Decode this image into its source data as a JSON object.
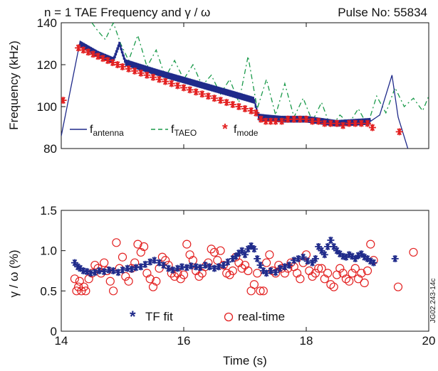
{
  "chart_data": [
    {
      "type": "line",
      "title": "n = 1 TAE Frequency and γ / ω",
      "pulse_label": "Pulse No: 55834",
      "xlabel": "",
      "ylabel": "Frequency (kHz)",
      "xlim": [
        14,
        20
      ],
      "ylim": [
        80,
        140
      ],
      "y_ticks": [
        80,
        100,
        120,
        140
      ],
      "grid": false,
      "legend_position": "bottom-left",
      "series": [
        {
          "name": "f_antenna",
          "legend_main": "f",
          "legend_sub": "antenna",
          "color": "#1f2a8a",
          "style": "solid",
          "x": [
            14.0,
            14.3,
            14.6,
            14.85,
            14.95,
            15.05,
            15.6,
            16.2,
            16.8,
            17.15,
            17.22,
            17.6,
            18.0,
            18.5,
            19.05,
            19.2,
            19.4,
            19.5,
            19.68
          ],
          "y": [
            86,
            130,
            125,
            122,
            130,
            121,
            116,
            111,
            106,
            103,
            95,
            94,
            94,
            92,
            93,
            96,
            115,
            95,
            78
          ]
        },
        {
          "name": "f_TAEO",
          "legend_main": "f",
          "legend_sub": "TAEO",
          "color": "#1a9a4a",
          "style": "dashed",
          "x": [
            14.5,
            14.6,
            14.72,
            14.85,
            14.97,
            15.1,
            15.25,
            15.4,
            15.55,
            15.7,
            15.85,
            16.0,
            16.15,
            16.3,
            16.45,
            16.6,
            16.75,
            16.9,
            17.05,
            17.2,
            17.35,
            17.5,
            17.65,
            17.8,
            17.95,
            18.1,
            18.25,
            18.4,
            18.55,
            18.7,
            18.85,
            19.0,
            19.15,
            19.3,
            19.45,
            19.6,
            19.75,
            19.9,
            20.0
          ],
          "y": [
            140,
            136,
            132,
            140,
            130,
            122,
            134,
            119,
            127,
            114,
            122,
            113,
            120,
            110,
            115,
            106,
            113,
            102,
            124,
            99,
            113,
            96,
            111,
            95,
            104,
            93,
            102,
            90,
            96,
            92,
            99,
            91,
            105,
            97,
            109,
            100,
            104,
            98,
            105
          ]
        },
        {
          "name": "f_mode",
          "legend_main": "f",
          "legend_sub": "mode",
          "color": "#e32020",
          "style": "markers",
          "x": [
            14.03,
            14.28,
            14.36,
            14.44,
            14.52,
            14.6,
            14.68,
            14.76,
            14.84,
            14.92,
            15.0,
            15.1,
            15.2,
            15.3,
            15.4,
            15.5,
            15.6,
            15.7,
            15.8,
            15.9,
            16.0,
            16.1,
            16.2,
            16.3,
            16.4,
            16.5,
            16.6,
            16.7,
            16.8,
            16.9,
            17.0,
            17.1,
            17.18,
            17.26,
            17.34,
            17.42,
            17.5,
            17.6,
            17.7,
            17.8,
            17.9,
            18.0,
            18.1,
            18.2,
            18.3,
            18.4,
            18.5,
            18.6,
            18.7,
            18.8,
            18.9,
            19.0,
            19.08,
            19.52
          ],
          "y": [
            103,
            128,
            127,
            126,
            125,
            124,
            123,
            122,
            121,
            120,
            119,
            118,
            117,
            116,
            115,
            114,
            113,
            112,
            111,
            110,
            109,
            108,
            107,
            106,
            105,
            104,
            103,
            102,
            101,
            100,
            99,
            98,
            97,
            94,
            93,
            93,
            93,
            93,
            94,
            94,
            94,
            94,
            93,
            93,
            92,
            92,
            92,
            91,
            92,
            92,
            92,
            92,
            90,
            88
          ]
        }
      ]
    },
    {
      "type": "scatter",
      "title": "",
      "xlabel": "Time (s)",
      "ylabel": "γ / ω (%)",
      "xlim": [
        14,
        20
      ],
      "ylim": [
        0,
        1.5
      ],
      "x_ticks": [
        14,
        16,
        18,
        20
      ],
      "y_ticks": [
        0,
        0.5,
        1.0,
        1.5
      ],
      "y_tick_labels": [
        "0",
        "0.5",
        "1.0",
        "1.5"
      ],
      "grid": false,
      "legend_position": "bottom-center",
      "series": [
        {
          "name": "TF fit",
          "color": "#1f2a8a",
          "marker": "asterisk",
          "x": [
            14.22,
            14.27,
            14.31,
            14.36,
            14.42,
            14.48,
            14.55,
            14.62,
            14.7,
            14.78,
            14.85,
            14.93,
            15.0,
            15.08,
            15.15,
            15.22,
            15.3,
            15.37,
            15.45,
            15.52,
            15.6,
            15.67,
            15.75,
            15.82,
            15.9,
            15.97,
            16.05,
            16.12,
            16.2,
            16.27,
            16.35,
            16.42,
            16.5,
            16.57,
            16.65,
            16.72,
            16.8,
            16.85,
            16.9,
            16.95,
            17.0,
            17.05,
            17.1,
            17.15,
            17.2,
            17.25,
            17.3,
            17.35,
            17.42,
            17.5,
            17.57,
            17.65,
            17.72,
            17.8,
            17.87,
            17.95,
            18.02,
            18.1,
            18.15,
            18.2,
            18.25,
            18.3,
            18.35,
            18.4,
            18.45,
            18.5,
            18.55,
            18.6,
            18.65,
            18.7,
            18.75,
            18.8,
            18.85,
            18.9,
            18.95,
            19.0,
            19.05,
            19.1,
            19.45
          ],
          "y": [
            0.85,
            0.8,
            0.78,
            0.75,
            0.74,
            0.72,
            0.73,
            0.75,
            0.74,
            0.76,
            0.75,
            0.73,
            0.76,
            0.78,
            0.77,
            0.79,
            0.8,
            0.83,
            0.86,
            0.88,
            0.85,
            0.82,
            0.78,
            0.76,
            0.78,
            0.8,
            0.79,
            0.81,
            0.8,
            0.79,
            0.82,
            0.8,
            0.78,
            0.8,
            0.82,
            0.86,
            0.9,
            0.93,
            0.97,
            1.0,
            0.95,
            1.02,
            1.06,
            1.02,
            0.9,
            0.82,
            0.75,
            0.72,
            0.75,
            0.73,
            0.78,
            0.8,
            0.82,
            0.88,
            0.9,
            0.92,
            0.87,
            0.85,
            0.9,
            1.05,
            1.0,
            0.95,
            1.05,
            1.13,
            1.05,
            1.0,
            0.96,
            0.93,
            0.92,
            0.95,
            0.93,
            0.9,
            0.94,
            0.96,
            0.92,
            0.9,
            0.87,
            0.85,
            0.9
          ]
        },
        {
          "name": "real-time",
          "color": "#e32020",
          "marker": "circle",
          "x": [
            14.22,
            14.25,
            14.28,
            14.3,
            14.33,
            14.37,
            14.4,
            14.45,
            14.5,
            14.55,
            14.6,
            14.65,
            14.7,
            14.75,
            14.8,
            14.85,
            14.9,
            14.95,
            15.0,
            15.05,
            15.1,
            15.15,
            15.2,
            15.25,
            15.3,
            15.35,
            15.4,
            15.45,
            15.5,
            15.55,
            15.6,
            15.65,
            15.7,
            15.75,
            15.8,
            15.85,
            15.9,
            15.95,
            16.0,
            16.05,
            16.1,
            16.15,
            16.2,
            16.25,
            16.3,
            16.35,
            16.4,
            16.45,
            16.5,
            16.55,
            16.6,
            16.65,
            16.7,
            16.75,
            16.8,
            16.85,
            16.9,
            16.95,
            17.0,
            17.05,
            17.1,
            17.15,
            17.2,
            17.25,
            17.3,
            17.35,
            17.4,
            17.45,
            17.5,
            17.55,
            17.6,
            17.65,
            17.7,
            17.75,
            17.8,
            17.85,
            17.9,
            17.95,
            18.0,
            18.05,
            18.1,
            18.15,
            18.2,
            18.25,
            18.3,
            18.35,
            18.4,
            18.45,
            18.5,
            18.55,
            18.6,
            18.65,
            18.7,
            18.75,
            18.8,
            18.85,
            18.9,
            18.95,
            19.0,
            19.05,
            19.1,
            19.5,
            19.75
          ],
          "y": [
            0.65,
            0.5,
            0.55,
            0.62,
            0.5,
            0.55,
            0.5,
            0.65,
            0.72,
            0.82,
            0.78,
            0.72,
            0.85,
            0.75,
            0.62,
            0.5,
            1.1,
            0.78,
            0.92,
            0.68,
            0.62,
            0.78,
            0.85,
            1.08,
            0.98,
            1.05,
            0.72,
            0.65,
            0.55,
            0.62,
            0.78,
            0.92,
            0.88,
            0.82,
            0.72,
            0.68,
            0.72,
            0.65,
            0.7,
            1.08,
            0.95,
            0.88,
            0.75,
            0.68,
            0.72,
            0.8,
            0.85,
            1.02,
            0.98,
            0.88,
            1.0,
            0.82,
            0.72,
            0.7,
            0.75,
            0.92,
            0.85,
            0.78,
            0.82,
            0.75,
            0.5,
            0.58,
            0.72,
            0.5,
            0.5,
            0.85,
            0.95,
            0.75,
            0.72,
            0.82,
            0.78,
            0.72,
            0.78,
            0.85,
            0.8,
            0.72,
            0.65,
            0.85,
            0.95,
            0.75,
            0.68,
            0.72,
            0.78,
            0.78,
            0.65,
            0.72,
            0.58,
            0.55,
            0.7,
            0.78,
            0.72,
            0.65,
            0.62,
            0.72,
            0.78,
            0.65,
            0.72,
            0.6,
            0.75,
            1.08,
            0.88,
            0.55,
            0.98
          ]
        }
      ]
    }
  ],
  "figure_id": "JG02.243-14c"
}
